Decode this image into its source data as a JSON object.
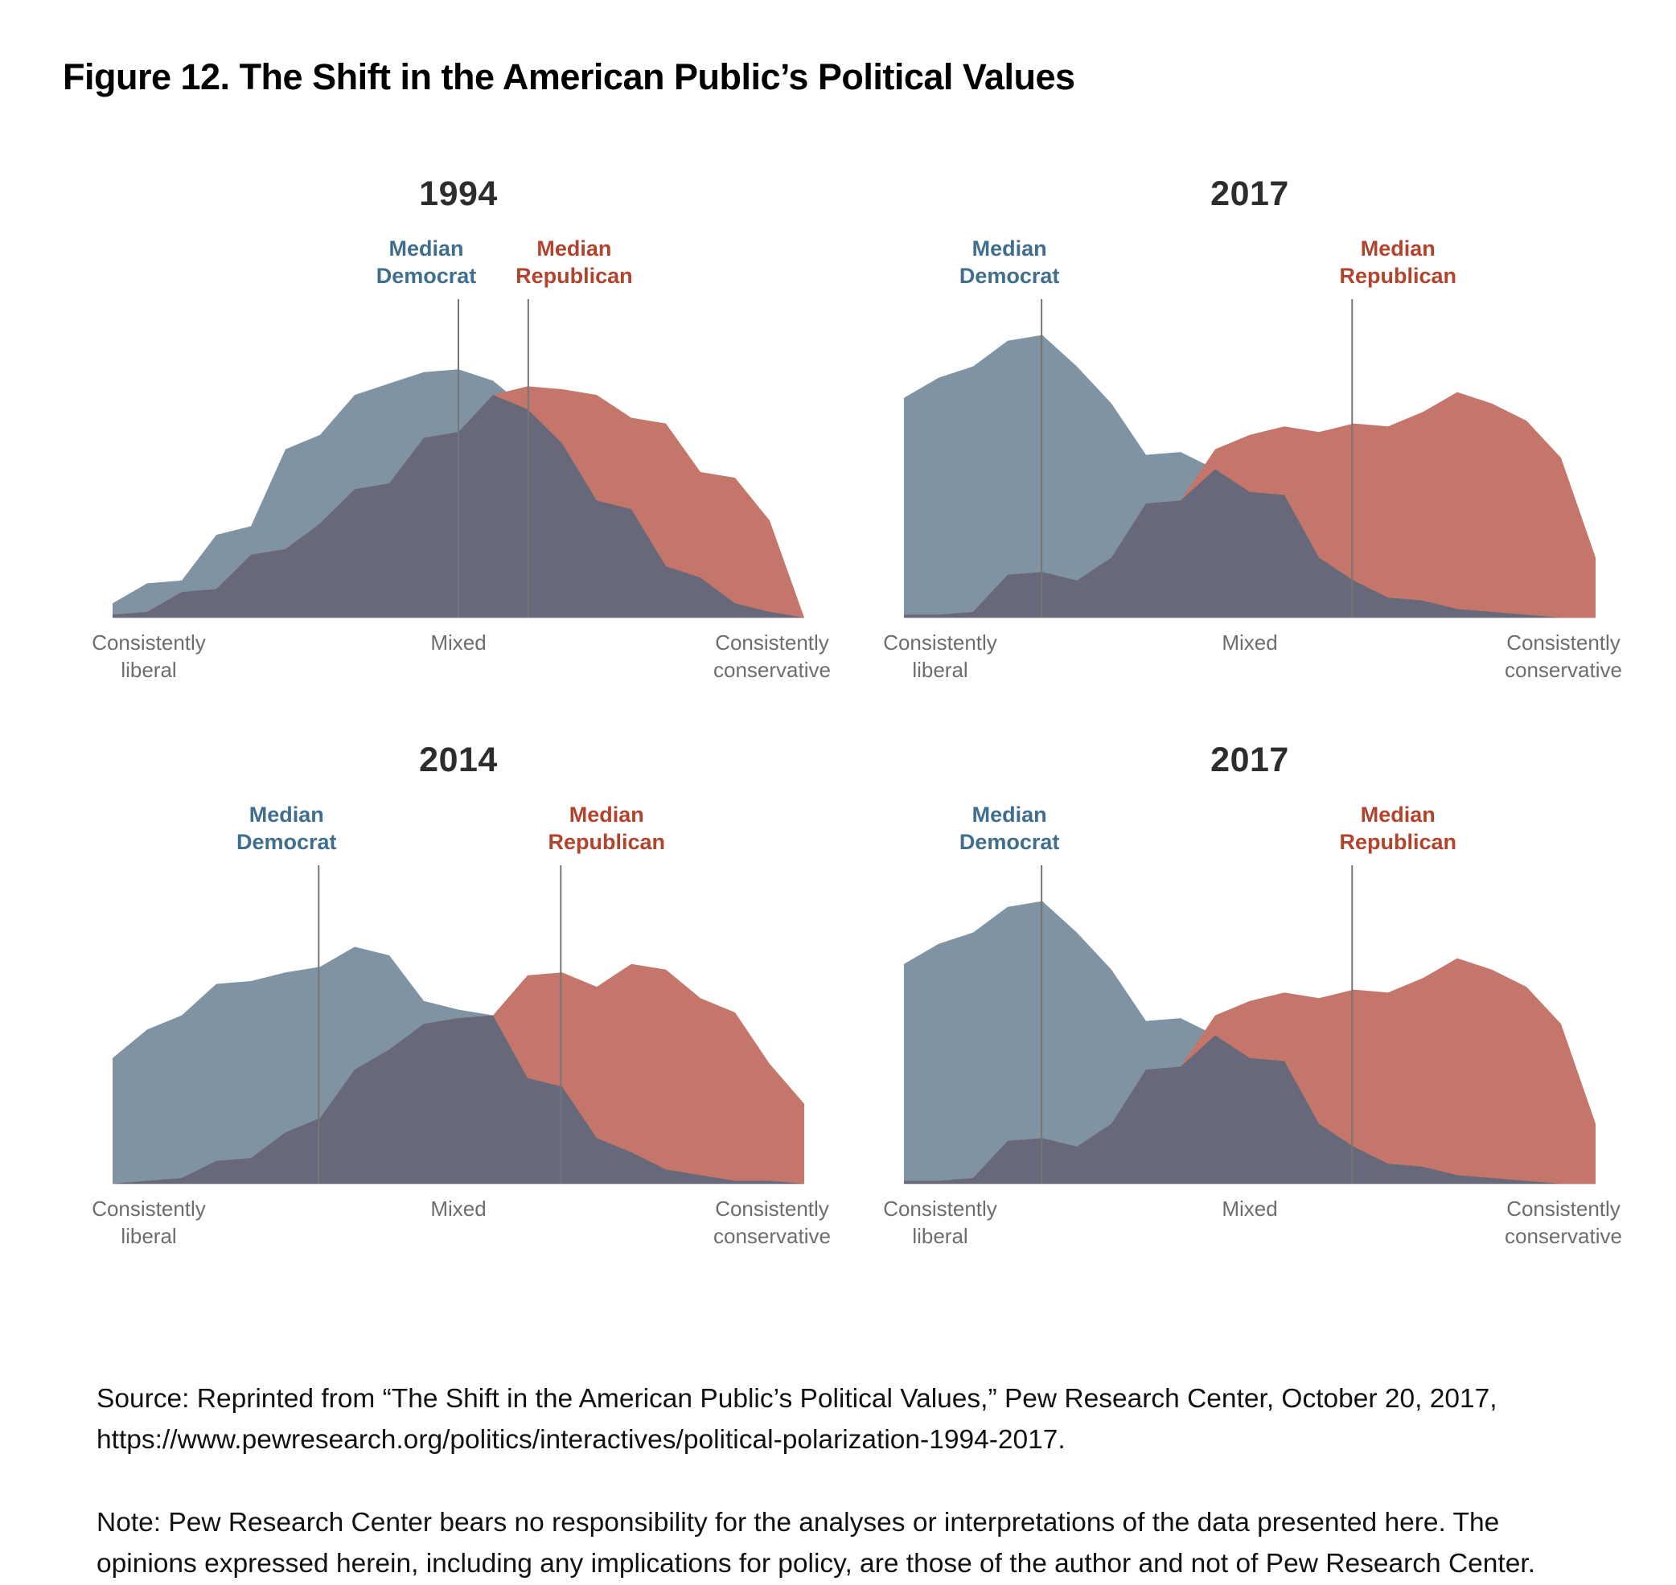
{
  "figure_title": "Figure 12. The Shift in the American Public’s Political Values",
  "colors": {
    "democrat_fill": "#7f93a3",
    "republican_fill": "#c4766a",
    "overlap_fill": "#67697a",
    "democrat_label": "#3f6e8e",
    "republican_label": "#b2432c",
    "median_line": "#757575",
    "baseline": "#c9c9c9",
    "axis_label": "#6d6d6d",
    "year_title": "#2d2d2d"
  },
  "median_labels": {
    "democrat": [
      "Median",
      "Democrat"
    ],
    "republican": [
      "Median",
      "Republican"
    ]
  },
  "x_axis_label_lines": [
    [
      "Consistently",
      "liberal"
    ],
    [
      "Mixed"
    ],
    [
      "Consistently",
      "conservative"
    ]
  ],
  "chart_data": [
    {
      "type": "area",
      "title": "1994",
      "x_axis_labels": [
        "Consistently liberal",
        "Mixed",
        "Consistently conservative"
      ],
      "y_axis": "relative share of public (unlabeled axis, heights 0-100)",
      "series": [
        {
          "name": "Democrat",
          "values": [
            5,
            12,
            13,
            29,
            32,
            59,
            64,
            78,
            82,
            86,
            87,
            83,
            73,
            61,
            41,
            38,
            18,
            14,
            5,
            2,
            0
          ]
        },
        {
          "name": "Republican",
          "values": [
            1,
            2,
            9,
            10,
            22,
            24,
            33,
            45,
            47,
            63,
            65,
            78,
            81,
            80,
            78,
            70,
            68,
            51,
            49,
            34,
            0
          ]
        }
      ],
      "medians": {
        "democrat_x_fraction": 0.5,
        "republican_x_fraction": 0.601
      },
      "annotations": [
        "Median Democrat",
        "Median Republican"
      ]
    },
    {
      "type": "area",
      "title": "2017",
      "x_axis_labels": [
        "Consistently liberal",
        "Mixed",
        "Consistently conservative"
      ],
      "y_axis": "relative share of public (unlabeled axis, heights 0-100)",
      "series": [
        {
          "name": "Democrat",
          "values": [
            77,
            84,
            88,
            97,
            99,
            88,
            75,
            57,
            58,
            52,
            44,
            43,
            21,
            13,
            7,
            6,
            3,
            2,
            1,
            0,
            0
          ]
        },
        {
          "name": "Republican",
          "values": [
            1,
            1,
            2,
            15,
            16,
            13,
            21,
            40,
            41,
            59,
            64,
            67,
            65,
            68,
            67,
            72,
            79,
            75,
            69,
            56,
            21
          ]
        }
      ],
      "medians": {
        "democrat_x_fraction": 0.199,
        "republican_x_fraction": 0.648
      },
      "annotations": [
        "Median Democrat",
        "Median Republican"
      ]
    },
    {
      "type": "area",
      "title": "2014",
      "x_axis_labels": [
        "Consistently liberal",
        "Mixed",
        "Consistently conservative"
      ],
      "y_axis": "relative share of public (unlabeled axis, heights 0-100)",
      "series": [
        {
          "name": "Democrat",
          "values": [
            44,
            54,
            59,
            70,
            71,
            74,
            76,
            83,
            80,
            64,
            61,
            59,
            37,
            34,
            16,
            11,
            5,
            3,
            1,
            1,
            0
          ]
        },
        {
          "name": "Republican",
          "values": [
            0,
            1,
            2,
            8,
            9,
            18,
            23,
            40,
            47,
            56,
            58,
            59,
            73,
            74,
            69,
            77,
            75,
            65,
            60,
            42,
            28
          ]
        }
      ],
      "medians": {
        "democrat_x_fraction": 0.298,
        "republican_x_fraction": 0.648
      },
      "annotations": [
        "Median Democrat",
        "Median Republican"
      ]
    },
    {
      "type": "area",
      "title": "2017",
      "x_axis_labels": [
        "Consistently liberal",
        "Mixed",
        "Consistently conservative"
      ],
      "y_axis": "relative share of public (unlabeled axis, heights 0-100)",
      "series": [
        {
          "name": "Democrat",
          "values": [
            77,
            84,
            88,
            97,
            99,
            88,
            75,
            57,
            58,
            52,
            44,
            43,
            21,
            13,
            7,
            6,
            3,
            2,
            1,
            0,
            0
          ]
        },
        {
          "name": "Republican",
          "values": [
            1,
            1,
            2,
            15,
            16,
            13,
            21,
            40,
            41,
            59,
            64,
            67,
            65,
            68,
            67,
            72,
            79,
            75,
            69,
            56,
            21
          ]
        }
      ],
      "medians": {
        "democrat_x_fraction": 0.199,
        "republican_x_fraction": 0.648
      },
      "annotations": [
        "Median Democrat",
        "Median Republican"
      ]
    }
  ],
  "source_text": "Source: Reprinted from “The Shift in the American Public’s Political Values,” Pew Research Center, October 20, 2017, https://www.pewresearch.org/politics/interactives/political-polarization-1994-2017.",
  "note_text": "Note: Pew Research Center bears no responsibility for the analyses or interpretations of the data presented here. The opinions expressed herein, including any implications for policy, are those of the author and not of Pew Research Center."
}
